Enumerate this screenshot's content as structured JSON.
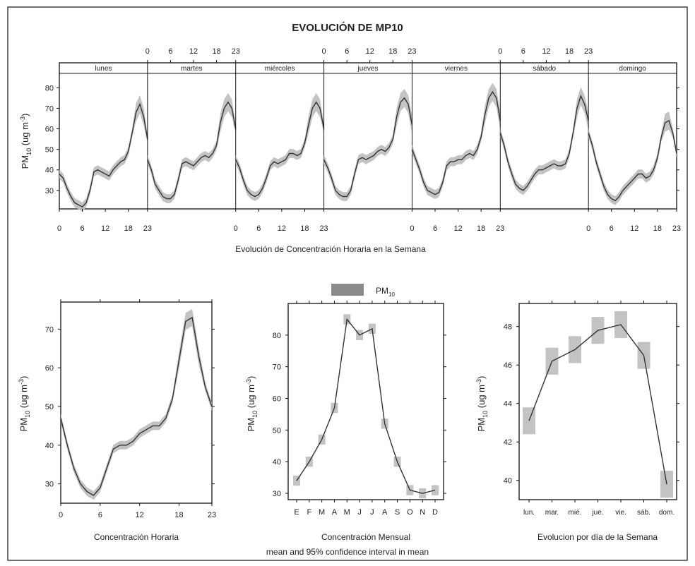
{
  "title": "EVOLUCIÓN DE MP10",
  "legend_label": "PM",
  "legend_sub": "10",
  "caption_line2": "mean and 95% confidence interval in mean",
  "colors": {
    "band": "#bdbdbd",
    "line": "#333333",
    "frame": "#111111"
  },
  "chart_data": [
    {
      "type": "line",
      "panel": "weekly-hourly",
      "xlabel": "Evolución de Concentración Horaria en la Semana",
      "ylabel": "PM10 (ug m-3)",
      "ylim": [
        21,
        87
      ],
      "yticks": [
        30,
        40,
        50,
        60,
        70,
        80
      ],
      "hour_ticks": [
        0,
        6,
        12,
        18,
        23
      ],
      "days": [
        {
          "label": "lunes",
          "values": [
            38,
            36,
            31,
            27,
            24,
            23,
            22,
            24,
            30,
            39,
            40,
            39,
            38,
            37,
            40,
            42,
            44,
            45,
            49,
            58,
            68,
            72,
            66,
            55,
            50
          ]
        },
        {
          "label": "martes",
          "values": [
            45,
            40,
            33,
            30,
            27,
            26,
            26,
            28,
            35,
            43,
            44,
            43,
            42,
            44,
            46,
            47,
            46,
            48,
            52,
            63,
            70,
            73,
            70,
            60,
            52
          ]
        },
        {
          "label": "miércoles",
          "values": [
            45,
            41,
            35,
            30,
            28,
            27,
            28,
            31,
            36,
            42,
            44,
            43,
            44,
            45,
            48,
            48,
            47,
            48,
            53,
            62,
            70,
            73,
            70,
            60,
            52
          ]
        },
        {
          "label": "jueves",
          "values": [
            45,
            41,
            36,
            30,
            28,
            27,
            27,
            30,
            38,
            45,
            46,
            45,
            46,
            47,
            49,
            50,
            49,
            51,
            55,
            66,
            73,
            75,
            72,
            62,
            54
          ]
        },
        {
          "label": "viernes",
          "values": [
            50,
            45,
            40,
            34,
            30,
            29,
            28,
            29,
            34,
            42,
            44,
            44,
            45,
            45,
            47,
            48,
            47,
            50,
            56,
            67,
            75,
            78,
            75,
            64,
            56
          ]
        },
        {
          "label": "sábado",
          "values": [
            58,
            52,
            44,
            38,
            33,
            31,
            30,
            32,
            35,
            38,
            40,
            40,
            41,
            42,
            43,
            42,
            42,
            43,
            48,
            58,
            70,
            76,
            72,
            64,
            58
          ]
        },
        {
          "label": "domingo",
          "values": [
            58,
            52,
            44,
            38,
            32,
            28,
            26,
            25,
            27,
            30,
            32,
            34,
            36,
            38,
            38,
            36,
            37,
            40,
            46,
            56,
            63,
            64,
            58,
            48,
            44
          ]
        }
      ]
    },
    {
      "type": "line",
      "panel": "hourly",
      "xlabel": "Concentración Horaria",
      "ylabel": "PM10 (ug m-3)",
      "xlim": [
        0,
        23
      ],
      "xticks": [
        0,
        6,
        12,
        18,
        23
      ],
      "ylim": [
        25,
        77
      ],
      "yticks": [
        30,
        40,
        50,
        60,
        70
      ],
      "x": [
        0,
        1,
        2,
        3,
        4,
        5,
        6,
        7,
        8,
        9,
        10,
        11,
        12,
        13,
        14,
        15,
        16,
        17,
        18,
        19,
        20,
        21,
        22,
        23
      ],
      "values": [
        47,
        40,
        34,
        30,
        28,
        27,
        29,
        34,
        39,
        40,
        40,
        41,
        43,
        44,
        45,
        45,
        47,
        52,
        62,
        72,
        73,
        63,
        55,
        50
      ]
    },
    {
      "type": "line",
      "panel": "monthly",
      "xlabel": "Concentración Mensual",
      "ylabel": "PM10 (ug m-3)",
      "ylim": [
        28,
        90
      ],
      "yticks": [
        30,
        40,
        50,
        60,
        70,
        80
      ],
      "categories": [
        "E",
        "F",
        "M",
        "A",
        "M",
        "J",
        "J",
        "A",
        "S",
        "O",
        "N",
        "D"
      ],
      "values": [
        34,
        40,
        47,
        57,
        85,
        80,
        82,
        52,
        40,
        31,
        30,
        31
      ]
    },
    {
      "type": "line",
      "panel": "weekday",
      "xlabel": "Evolucion por día de la Semana",
      "ylabel": "PM10 (ug m-3)",
      "ylim": [
        39,
        49.2
      ],
      "yticks": [
        40,
        42,
        44,
        46,
        48
      ],
      "categories": [
        "lun.",
        "mar.",
        "mié.",
        "jue.",
        "vie.",
        "sáb.",
        "dom."
      ],
      "values": [
        43.1,
        46.2,
        46.8,
        47.8,
        48.1,
        46.5,
        39.8
      ]
    }
  ]
}
